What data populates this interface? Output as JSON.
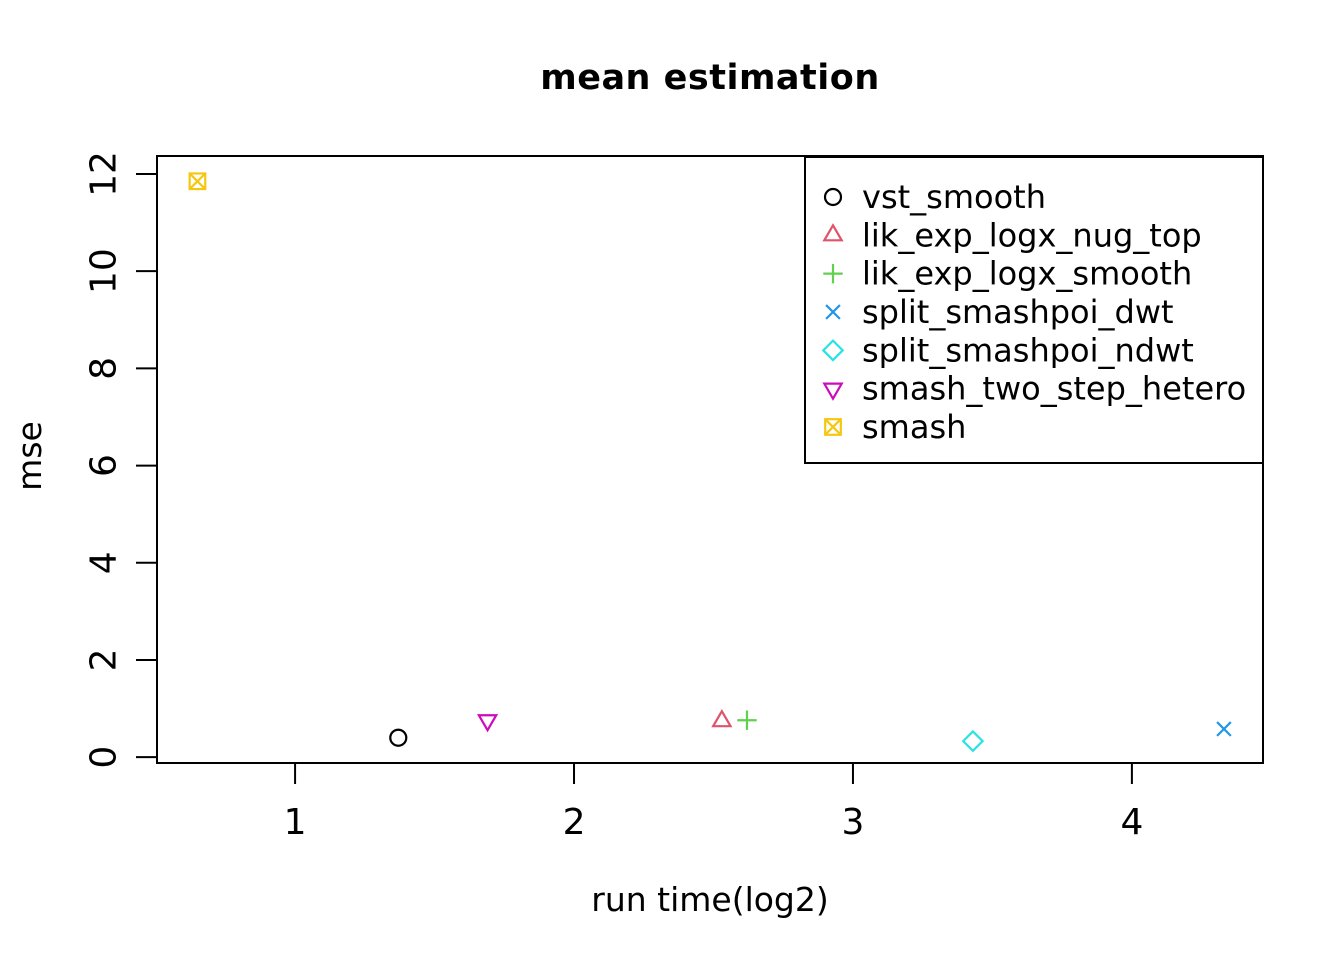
{
  "chart_data": {
    "type": "scatter",
    "title": "mean estimation",
    "xlabel": "run time(log2)",
    "ylabel": "mse",
    "xlim": [
      0.505,
      4.47
    ],
    "ylim": [
      -0.12,
      12.37
    ],
    "x_ticks": [
      1,
      2,
      3,
      4
    ],
    "y_ticks": [
      0,
      2,
      4,
      6,
      8,
      10,
      12
    ],
    "grid": false,
    "legend_position": "topright",
    "axis_color": "#000000",
    "series": [
      {
        "name": "vst_smooth",
        "color": "#000000",
        "marker": "circle",
        "x": 1.37,
        "y": 0.4
      },
      {
        "name": "lik_exp_logx_nug_top",
        "color": "#DF536B",
        "marker": "triangle-up",
        "x": 2.53,
        "y": 0.74
      },
      {
        "name": "lik_exp_logx_smooth",
        "color": "#61D04F",
        "marker": "plus",
        "x": 2.62,
        "y": 0.76
      },
      {
        "name": "split_smashpoi_dwt",
        "color": "#2297E6",
        "marker": "x",
        "x": 4.33,
        "y": 0.58
      },
      {
        "name": "split_smashpoi_ndwt",
        "color": "#28E2E5",
        "marker": "diamond",
        "x": 3.43,
        "y": 0.33
      },
      {
        "name": "smash_two_step_hetero",
        "color": "#CD0BBC",
        "marker": "triangle-down",
        "x": 1.69,
        "y": 0.76
      },
      {
        "name": "smash",
        "color": "#F5C710",
        "marker": "square-x",
        "x": 0.65,
        "y": 11.85
      }
    ]
  }
}
